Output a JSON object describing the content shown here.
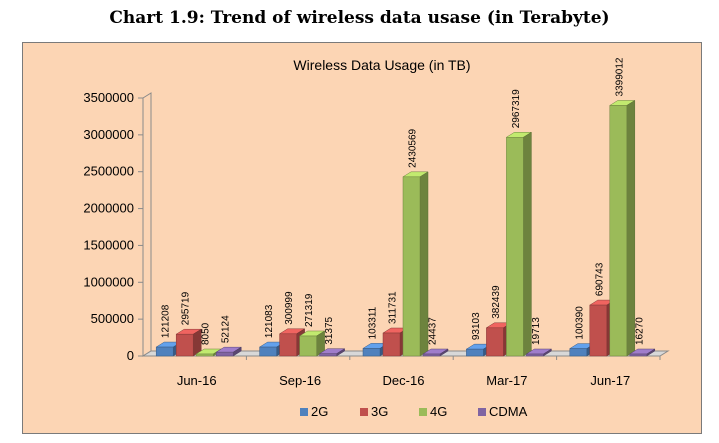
{
  "heading": "Chart 1.9:  Trend of wireless data usase (in Terabyte)",
  "chart_data": {
    "type": "bar",
    "title": "Wireless Data Usage (in TB)",
    "categories": [
      "Jun-16",
      "Sep-16",
      "Dec-16",
      "Mar-17",
      "Jun-17"
    ],
    "series": [
      {
        "name": "2G",
        "color": "#4f81bd",
        "values": [
          121208,
          121083,
          103311,
          93103,
          100390
        ]
      },
      {
        "name": "3G",
        "color": "#c0504d",
        "values": [
          295719,
          300999,
          311731,
          382439,
          690743
        ]
      },
      {
        "name": "4G",
        "color": "#9bbb59",
        "values": [
          8050,
          271319,
          2430569,
          2967319,
          3399012
        ]
      },
      {
        "name": "CDMA",
        "color": "#8064a2",
        "values": [
          52124,
          31375,
          24437,
          19713,
          16270
        ]
      }
    ],
    "y_ticks": [
      "0",
      "500000",
      "1000000",
      "1500000",
      "2000000",
      "2500000",
      "3000000",
      "3500000"
    ],
    "ylim": [
      0,
      3500000
    ],
    "legend_position": "bottom",
    "grid": false,
    "data_labels": true
  }
}
